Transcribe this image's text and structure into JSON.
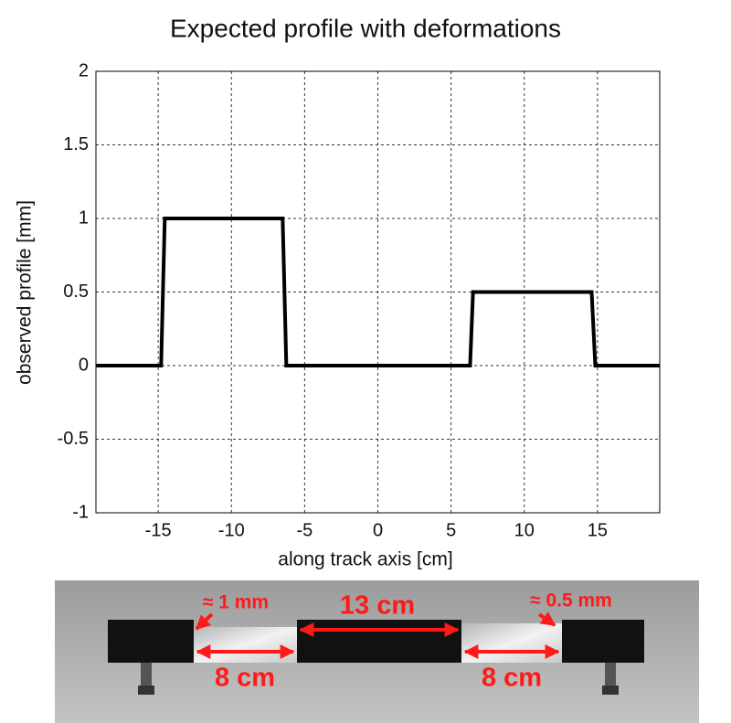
{
  "chart_data": {
    "type": "line",
    "title": "Expected profile with deformations",
    "xlabel": "along track axis [cm]",
    "ylabel": "observed profile [mm]",
    "x": [
      -19.25,
      -14.8,
      -14.55,
      -6.5,
      -6.25,
      6.3,
      6.5,
      14.6,
      14.85,
      19.25
    ],
    "values": [
      0,
      0,
      1,
      1,
      0,
      0,
      0.5,
      0.5,
      0,
      0
    ],
    "color": "#000000",
    "xlim": [
      -19.25,
      19.25
    ],
    "xticks": [
      -15,
      -10,
      -5,
      0,
      5,
      10,
      15
    ],
    "ylim": [
      -1,
      2
    ],
    "yticks": [
      -1,
      -0.5,
      0,
      0.5,
      1,
      1.5,
      2
    ],
    "grid": true
  },
  "photo_annotations": [
    "≈ 1 mm",
    "13 cm",
    "≈ 0.5 mm",
    "8 cm",
    "8 cm"
  ]
}
